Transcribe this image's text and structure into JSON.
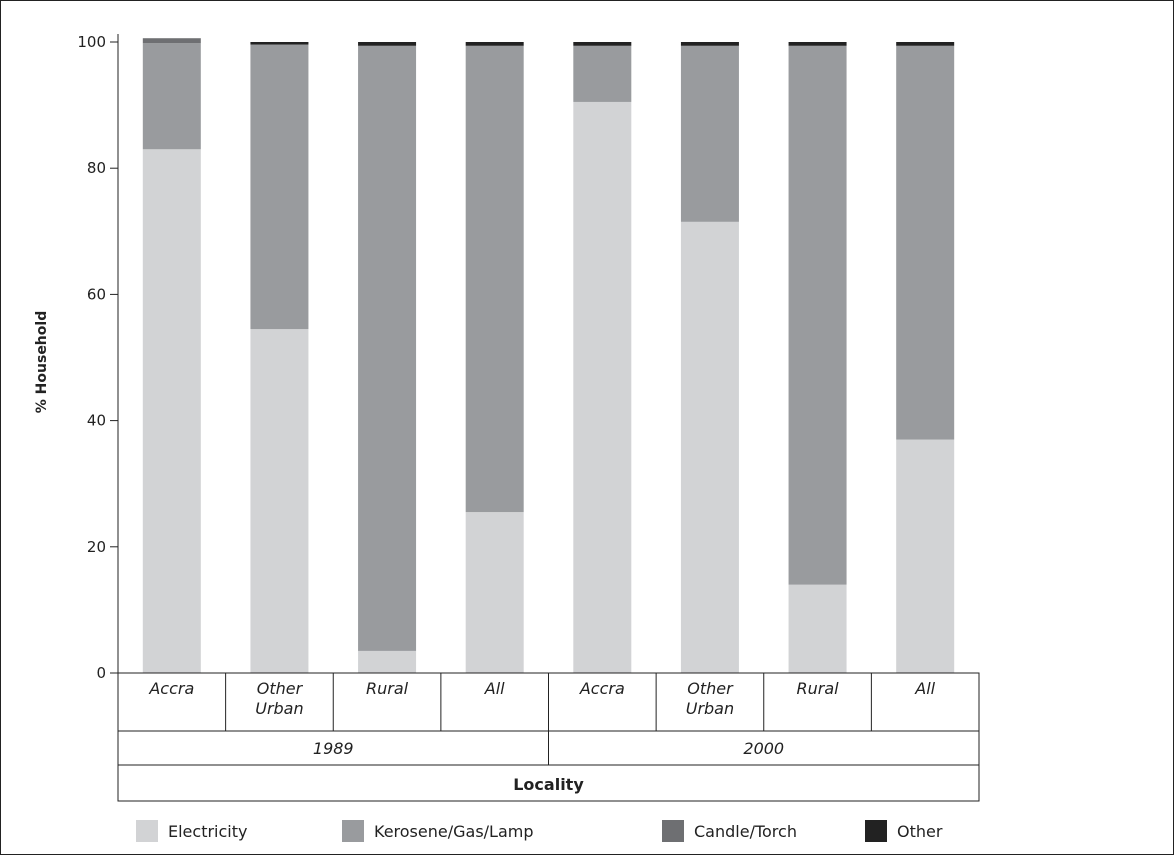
{
  "chart_data": {
    "type": "bar",
    "stacked": true,
    "ylabel": "% Household",
    "xlabel": "Locality",
    "ylim": [
      0,
      100
    ],
    "yticks": [
      0,
      20,
      40,
      60,
      80,
      100
    ],
    "groups": [
      {
        "label": "1989",
        "categories": [
          "Accra",
          "Other Urban",
          "Rural",
          "All"
        ]
      },
      {
        "label": "2000",
        "categories": [
          "Accra",
          "Other Urban",
          "Rural",
          "All"
        ]
      }
    ],
    "categories": [
      "Accra",
      "Other Urban",
      "Rural",
      "All",
      "Accra",
      "Other Urban",
      "Rural",
      "All"
    ],
    "series": [
      {
        "name": "Electricity",
        "color": "#d2d3d5",
        "values": [
          83.0,
          54.5,
          3.5,
          25.5,
          90.5,
          71.5,
          14.0,
          37.0
        ]
      },
      {
        "name": "Kerosene/Gas/Lamp",
        "color": "#999b9e",
        "values": [
          16.8,
          45.1,
          95.9,
          73.9,
          8.9,
          27.9,
          85.4,
          62.4
        ]
      },
      {
        "name": "Candle/Torch",
        "color": "#6e6f72",
        "values": [
          0.8,
          0.0,
          0.0,
          0.0,
          0.0,
          0.0,
          0.0,
          0.0
        ]
      },
      {
        "name": "Other",
        "color": "#222222",
        "values": [
          0.0,
          0.4,
          0.6,
          0.6,
          0.6,
          0.6,
          0.6,
          0.6
        ]
      }
    ],
    "legend_position": "bottom",
    "grid": false
  }
}
